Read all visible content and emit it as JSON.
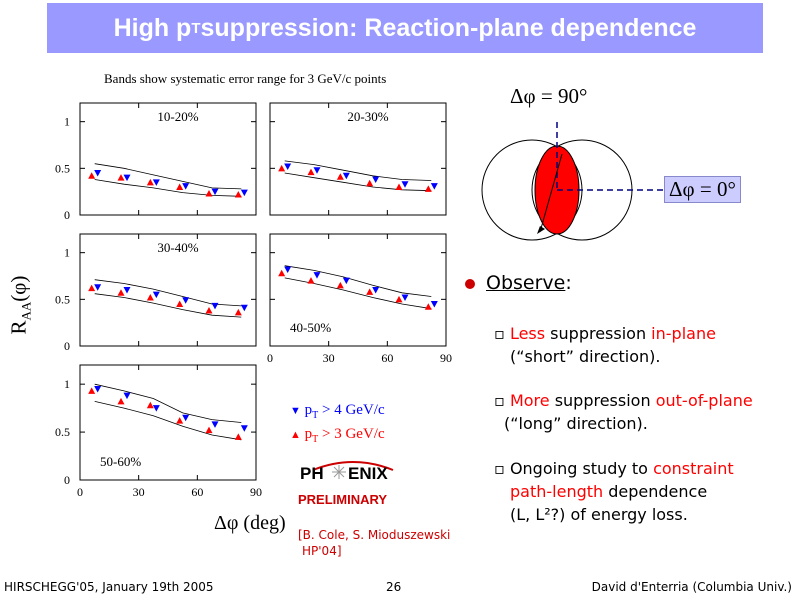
{
  "title": {
    "main": "High p",
    "sub": "T",
    "rest": " suppression: Reaction-plane dependence"
  },
  "chart_caption": "Bands show systematic error range for 3 GeV/c points",
  "y_axis_label": "R",
  "y_axis_sub": "AA",
  "y_axis_phi": "(φ)",
  "x_axis_label": "Δφ (deg)",
  "legend": {
    "pt4": "p",
    "pt4_sub": "T",
    "pt4_rest": " > 4 GeV/c",
    "pt3": "p",
    "pt3_sub": "T",
    "pt3_rest": " > 3 GeV/c"
  },
  "logo": {
    "ph": "PH",
    "enix": "ENIX",
    "preliminary": "PRELIMINARY"
  },
  "citation": {
    "line1": "[B. Cole, S. Mioduszewski",
    "line2": "HP'04]"
  },
  "diagram": {
    "label_90": "Δφ = 90°",
    "label_0": "Δφ = 0°"
  },
  "observe": {
    "heading": "Observe",
    "heading_colon": ":",
    "b1_red1": "Less",
    "b1_t1": " suppression ",
    "b1_red2": "in-plane",
    "b1_line2": "(“short” direction).",
    "b2_red1": "More",
    "b2_t1": " suppression ",
    "b2_red2": "out-of-plane",
    "b2_line2": "(“long” direction).",
    "b3_t1": "Ongoing study to ",
    "b3_red1": "constraint",
    "b3_red2": "path-length",
    "b3_t2": " dependence",
    "b3_line3": "(L, L²?) of energy loss."
  },
  "footer": {
    "left": "HIRSCHEGG'05, January 19th 2005",
    "center": "26",
    "right": "David d'Enterria (Columbia Univ.)"
  },
  "chart_data": {
    "type": "scatter",
    "title": "Bands show systematic error range for 3 GeV/c points",
    "xlabel": "Δφ (deg)",
    "ylabel": "R_AA(φ)",
    "xlim": [
      0,
      90
    ],
    "ylim": [
      0,
      1.2
    ],
    "x_ticks": [
      "0",
      "30",
      "60",
      "90"
    ],
    "y_ticks": [
      "0",
      "0.5",
      "1"
    ],
    "panels": [
      {
        "label": "10-20%",
        "x": [
          7.5,
          22.5,
          37.5,
          52.5,
          67.5,
          82.5
        ],
        "series": [
          {
            "name": "pT > 4 GeV/c",
            "values": [
              0.45,
              0.4,
              0.35,
              0.31,
              0.25,
              0.24
            ]
          },
          {
            "name": "pT > 3 GeV/c",
            "values": [
              0.42,
              0.4,
              0.35,
              0.3,
              0.23,
              0.22
            ]
          }
        ],
        "band_upper": [
          0.55,
          0.5,
          0.43,
          0.36,
          0.29,
          0.28
        ],
        "band_lower": [
          0.38,
          0.33,
          0.29,
          0.24,
          0.21,
          0.2
        ]
      },
      {
        "label": "20-30%",
        "x": [
          7.5,
          22.5,
          37.5,
          52.5,
          67.5,
          82.5
        ],
        "series": [
          {
            "name": "pT > 4 GeV/c",
            "values": [
              0.52,
              0.48,
              0.42,
              0.38,
              0.33,
              0.31
            ]
          },
          {
            "name": "pT > 3 GeV/c",
            "values": [
              0.5,
              0.46,
              0.41,
              0.34,
              0.3,
              0.28
            ]
          }
        ],
        "band_upper": [
          0.58,
          0.54,
          0.48,
          0.42,
          0.38,
          0.37
        ],
        "band_lower": [
          0.45,
          0.4,
          0.35,
          0.3,
          0.27,
          0.26
        ]
      },
      {
        "label": "30-40%",
        "x": [
          7.5,
          22.5,
          37.5,
          52.5,
          67.5,
          82.5
        ],
        "series": [
          {
            "name": "pT > 4 GeV/c",
            "values": [
              0.63,
              0.6,
              0.55,
              0.49,
              0.43,
              0.41
            ]
          },
          {
            "name": "pT > 3 GeV/c",
            "values": [
              0.62,
              0.57,
              0.52,
              0.45,
              0.38,
              0.36
            ]
          }
        ],
        "band_upper": [
          0.71,
          0.67,
          0.61,
          0.53,
          0.45,
          0.43
        ],
        "band_lower": [
          0.56,
          0.52,
          0.46,
          0.39,
          0.33,
          0.31
        ]
      },
      {
        "label": "40-50%",
        "x": [
          7.5,
          22.5,
          37.5,
          52.5,
          67.5,
          82.5
        ],
        "series": [
          {
            "name": "pT > 4 GeV/c",
            "values": [
              0.82,
              0.76,
              0.7,
              0.6,
              0.52,
              0.45
            ]
          },
          {
            "name": "pT > 3 GeV/c",
            "values": [
              0.78,
              0.7,
              0.65,
              0.58,
              0.5,
              0.42
            ]
          }
        ],
        "band_upper": [
          0.86,
          0.81,
          0.74,
          0.65,
          0.57,
          0.53
        ],
        "band_lower": [
          0.73,
          0.67,
          0.6,
          0.52,
          0.45,
          0.4
        ]
      },
      {
        "label": "50-60%",
        "x": [
          7.5,
          22.5,
          37.5,
          52.5,
          67.5,
          82.5
        ],
        "series": [
          {
            "name": "pT > 4 GeV/c",
            "values": [
              0.95,
              0.88,
              0.75,
              0.65,
              0.58,
              0.54
            ]
          },
          {
            "name": "pT > 3 GeV/c",
            "values": [
              0.93,
              0.82,
              0.78,
              0.62,
              0.52,
              0.45
            ]
          }
        ],
        "band_upper": [
          1.0,
          0.93,
          0.85,
          0.7,
          0.63,
          0.6
        ],
        "band_lower": [
          0.82,
          0.75,
          0.67,
          0.56,
          0.47,
          0.42
        ]
      }
    ]
  }
}
